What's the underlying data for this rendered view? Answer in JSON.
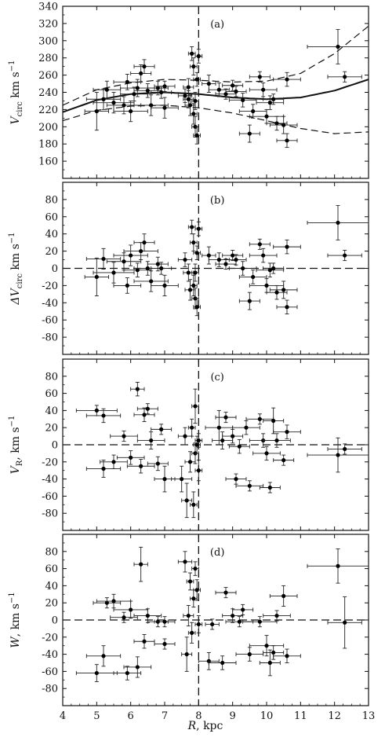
{
  "figure": {
    "xlabel_var": "R",
    "xlabel_unit": ", kpc"
  },
  "chart_data": [
    {
      "id": "a",
      "panel_label": "(a)",
      "type": "scatter",
      "ylabel_var": "V",
      "ylabel_sub": "circ",
      "ylabel_unit": " km s",
      "ylabel_sup": "−1",
      "xlim": [
        4,
        13
      ],
      "ylim": [
        140,
        340
      ],
      "xticks": [
        4,
        5,
        6,
        7,
        8,
        9,
        10,
        11,
        12,
        13
      ],
      "yticks": [
        160,
        180,
        200,
        220,
        240,
        260,
        280,
        300,
        320,
        340
      ],
      "vline_x": 8,
      "curves": [
        {
          "style": "solid",
          "x": [
            4,
            5,
            6,
            7,
            8,
            9,
            10,
            11,
            12,
            13
          ],
          "y": [
            217,
            231,
            238,
            240,
            238,
            234,
            232,
            234,
            242,
            255
          ]
        },
        {
          "style": "dashed",
          "x": [
            4,
            5,
            6,
            7,
            8,
            9,
            10,
            11,
            12,
            13
          ],
          "y": [
            225,
            243,
            251,
            255,
            254,
            252,
            253,
            262,
            285,
            317
          ]
        },
        {
          "style": "dashed",
          "x": [
            4,
            5,
            6,
            7,
            8,
            9,
            10,
            11,
            12,
            13
          ],
          "y": [
            207,
            219,
            224,
            225,
            222,
            216,
            207,
            198,
            192,
            194
          ]
        }
      ],
      "points": [
        [
          5.0,
          218,
          0.35,
          22
        ],
        [
          5.2,
          232,
          0.5,
          12
        ],
        [
          5.3,
          243,
          0.4,
          10
        ],
        [
          5.5,
          228,
          0.6,
          12
        ],
        [
          5.8,
          225,
          0.5,
          10
        ],
        [
          5.9,
          252,
          0.4,
          9
        ],
        [
          6.0,
          218,
          0.5,
          12
        ],
        [
          6.1,
          238,
          0.4,
          8
        ],
        [
          6.2,
          245,
          0.5,
          10
        ],
        [
          6.3,
          262,
          0.3,
          10
        ],
        [
          6.4,
          270,
          0.3,
          8
        ],
        [
          6.5,
          242,
          0.4,
          8
        ],
        [
          6.6,
          225,
          0.5,
          12
        ],
        [
          6.8,
          245,
          0.3,
          8
        ],
        [
          6.9,
          240,
          0.3,
          7
        ],
        [
          7.0,
          222,
          0.4,
          12
        ],
        [
          7.0,
          247,
          0.3,
          6
        ],
        [
          7.6,
          236,
          0.2,
          8
        ],
        [
          7.7,
          246,
          0.15,
          10
        ],
        [
          7.75,
          225,
          0.15,
          12
        ],
        [
          7.8,
          285,
          0.1,
          8
        ],
        [
          7.85,
          270,
          0.1,
          10
        ],
        [
          7.85,
          215,
          0.1,
          12
        ],
        [
          7.9,
          200,
          0.1,
          12
        ],
        [
          7.9,
          230,
          0.1,
          10
        ],
        [
          7.95,
          255,
          0.1,
          8
        ],
        [
          8.0,
          282,
          0.1,
          8
        ],
        [
          7.95,
          190,
          0.1,
          10
        ],
        [
          7.7,
          232,
          0.15,
          10
        ],
        [
          8.3,
          250,
          0.2,
          10
        ],
        [
          8.6,
          243,
          0.3,
          8
        ],
        [
          8.8,
          238,
          0.3,
          6
        ],
        [
          9.0,
          248,
          0.3,
          6
        ],
        [
          9.1,
          241,
          0.3,
          6
        ],
        [
          9.3,
          231,
          0.4,
          8
        ],
        [
          9.5,
          192,
          0.3,
          10
        ],
        [
          9.6,
          218,
          0.4,
          8
        ],
        [
          9.8,
          258,
          0.3,
          6
        ],
        [
          9.9,
          243,
          0.4,
          8
        ],
        [
          10.0,
          212,
          0.5,
          8
        ],
        [
          10.1,
          228,
          0.4,
          8
        ],
        [
          10.2,
          232,
          0.3,
          6
        ],
        [
          10.3,
          204,
          0.3,
          8
        ],
        [
          10.5,
          202,
          0.4,
          10
        ],
        [
          10.6,
          184,
          0.3,
          8
        ],
        [
          10.6,
          255,
          0.4,
          8
        ],
        [
          12.1,
          293,
          0.9,
          20
        ],
        [
          12.3,
          258,
          0.5,
          6
        ]
      ]
    },
    {
      "id": "b",
      "panel_label": "(b)",
      "type": "scatter",
      "ylabel_var": "ΔV",
      "ylabel_sub": "circ",
      "ylabel_unit": " km s",
      "ylabel_sup": "−1",
      "xlim": [
        4,
        13
      ],
      "ylim": [
        -100,
        100
      ],
      "xticks": [
        4,
        5,
        6,
        7,
        8,
        9,
        10,
        11,
        12,
        13
      ],
      "yticks": [
        -80,
        -60,
        -40,
        -20,
        0,
        20,
        40,
        60,
        80
      ],
      "vline_x": 8,
      "hline_y": 0,
      "points": [
        [
          5.0,
          -10,
          0.35,
          22
        ],
        [
          5.2,
          11,
          0.5,
          12
        ],
        [
          5.5,
          -5,
          0.6,
          12
        ],
        [
          5.8,
          8,
          0.5,
          10
        ],
        [
          5.9,
          -20,
          0.4,
          9
        ],
        [
          6.0,
          15,
          0.5,
          12
        ],
        [
          6.2,
          -2,
          0.4,
          8
        ],
        [
          6.3,
          20,
          0.5,
          10
        ],
        [
          6.4,
          30,
          0.3,
          10
        ],
        [
          6.5,
          0,
          0.4,
          8
        ],
        [
          6.6,
          -15,
          0.5,
          12
        ],
        [
          6.8,
          5,
          0.3,
          8
        ],
        [
          6.9,
          0,
          0.3,
          7
        ],
        [
          7.0,
          -20,
          0.4,
          12
        ],
        [
          7.6,
          10,
          0.2,
          8
        ],
        [
          7.7,
          -5,
          0.15,
          10
        ],
        [
          7.75,
          -25,
          0.15,
          12
        ],
        [
          7.8,
          48,
          0.1,
          8
        ],
        [
          7.85,
          30,
          0.1,
          10
        ],
        [
          7.85,
          -20,
          0.1,
          12
        ],
        [
          7.9,
          -35,
          0.1,
          12
        ],
        [
          7.9,
          -5,
          0.1,
          10
        ],
        [
          7.95,
          18,
          0.1,
          8
        ],
        [
          8.0,
          46,
          0.1,
          8
        ],
        [
          7.95,
          -45,
          0.1,
          10
        ],
        [
          8.3,
          15,
          0.2,
          10
        ],
        [
          8.6,
          10,
          0.3,
          8
        ],
        [
          8.8,
          5,
          0.3,
          6
        ],
        [
          9.0,
          15,
          0.3,
          6
        ],
        [
          9.1,
          10,
          0.3,
          6
        ],
        [
          9.3,
          0,
          0.4,
          8
        ],
        [
          9.5,
          -38,
          0.3,
          10
        ],
        [
          9.6,
          -10,
          0.4,
          8
        ],
        [
          9.8,
          28,
          0.3,
          6
        ],
        [
          9.9,
          15,
          0.4,
          8
        ],
        [
          10.0,
          -20,
          0.5,
          8
        ],
        [
          10.1,
          -2,
          0.4,
          8
        ],
        [
          10.2,
          0,
          0.3,
          6
        ],
        [
          10.3,
          -28,
          0.3,
          8
        ],
        [
          10.5,
          -25,
          0.4,
          10
        ],
        [
          10.6,
          -45,
          0.3,
          8
        ],
        [
          10.6,
          25,
          0.4,
          8
        ],
        [
          12.1,
          53,
          0.9,
          20
        ],
        [
          12.3,
          15,
          0.5,
          6
        ]
      ]
    },
    {
      "id": "c",
      "panel_label": "(c)",
      "type": "scatter",
      "ylabel_var": "V",
      "ylabel_sub": "R",
      "ylabel_unit": ", km s",
      "ylabel_sup": "−1",
      "xlim": [
        4,
        13
      ],
      "ylim": [
        -100,
        100
      ],
      "xticks": [
        4,
        5,
        6,
        7,
        8,
        9,
        10,
        11,
        12,
        13
      ],
      "yticks": [
        -80,
        -60,
        -40,
        -20,
        0,
        20,
        40,
        60,
        80
      ],
      "vline_x": 8,
      "hline_y": 0,
      "points": [
        [
          5.0,
          40,
          0.6,
          6
        ],
        [
          5.2,
          34,
          0.5,
          8
        ],
        [
          5.2,
          -28,
          0.5,
          10
        ],
        [
          5.5,
          -20,
          0.4,
          8
        ],
        [
          5.8,
          10,
          0.4,
          6
        ],
        [
          6.0,
          -15,
          0.4,
          8
        ],
        [
          6.2,
          65,
          0.2,
          8
        ],
        [
          6.3,
          -25,
          0.4,
          8
        ],
        [
          6.4,
          35,
          0.3,
          8
        ],
        [
          6.5,
          42,
          0.3,
          6
        ],
        [
          6.6,
          5,
          0.4,
          10
        ],
        [
          6.8,
          -22,
          0.3,
          8
        ],
        [
          6.9,
          18,
          0.3,
          6
        ],
        [
          7.0,
          -40,
          0.3,
          15
        ],
        [
          7.5,
          -40,
          0.3,
          15
        ],
        [
          7.6,
          10,
          0.2,
          10
        ],
        [
          7.65,
          -65,
          0.15,
          20
        ],
        [
          7.75,
          -20,
          0.15,
          12
        ],
        [
          7.8,
          20,
          0.1,
          10
        ],
        [
          7.85,
          -70,
          0.1,
          15
        ],
        [
          7.9,
          45,
          0.1,
          20
        ],
        [
          7.9,
          -10,
          0.1,
          12
        ],
        [
          7.95,
          0,
          0.1,
          10
        ],
        [
          8.0,
          -30,
          0.1,
          12
        ],
        [
          8.0,
          5,
          0.1,
          8
        ],
        [
          8.6,
          20,
          0.4,
          20
        ],
        [
          8.7,
          5,
          0.3,
          10
        ],
        [
          8.8,
          32,
          0.3,
          6
        ],
        [
          9.0,
          10,
          0.3,
          8
        ],
        [
          9.1,
          -40,
          0.3,
          6
        ],
        [
          9.2,
          -2,
          0.3,
          8
        ],
        [
          9.4,
          20,
          0.4,
          8
        ],
        [
          9.5,
          -48,
          0.4,
          6
        ],
        [
          9.8,
          30,
          0.4,
          6
        ],
        [
          9.9,
          5,
          0.4,
          8
        ],
        [
          10.0,
          -10,
          0.4,
          8
        ],
        [
          10.1,
          -50,
          0.3,
          6
        ],
        [
          10.2,
          28,
          0.3,
          15
        ],
        [
          10.3,
          5,
          0.4,
          8
        ],
        [
          10.5,
          -18,
          0.3,
          6
        ],
        [
          10.6,
          15,
          0.4,
          8
        ],
        [
          12.1,
          -12,
          0.9,
          20
        ],
        [
          12.3,
          -5,
          0.5,
          6
        ]
      ]
    },
    {
      "id": "d",
      "panel_label": "(d)",
      "type": "scatter",
      "ylabel_var": "W",
      "ylabel_sub": "",
      "ylabel_unit": ", km s",
      "ylabel_sup": "−1",
      "xlim": [
        4,
        13
      ],
      "ylim": [
        -100,
        100
      ],
      "xticks": [
        4,
        5,
        6,
        7,
        8,
        9,
        10,
        11,
        12,
        13
      ],
      "yticks": [
        -80,
        -60,
        -40,
        -20,
        0,
        20,
        40,
        60,
        80
      ],
      "vline_x": 8,
      "hline_y": 0,
      "points": [
        [
          5.0,
          -62,
          0.6,
          10
        ],
        [
          5.2,
          -42,
          0.5,
          12
        ],
        [
          5.3,
          20,
          0.4,
          6
        ],
        [
          5.5,
          22,
          0.5,
          8
        ],
        [
          5.8,
          3,
          0.4,
          6
        ],
        [
          5.9,
          -62,
          0.4,
          8
        ],
        [
          6.0,
          12,
          0.5,
          10
        ],
        [
          6.2,
          -55,
          0.4,
          12
        ],
        [
          6.3,
          65,
          0.2,
          20
        ],
        [
          6.4,
          -25,
          0.3,
          8
        ],
        [
          6.5,
          5,
          0.4,
          8
        ],
        [
          6.8,
          -2,
          0.3,
          6
        ],
        [
          7.0,
          -28,
          0.3,
          6
        ],
        [
          7.0,
          -2,
          0.3,
          6
        ],
        [
          7.6,
          68,
          0.2,
          12
        ],
        [
          7.65,
          -40,
          0.15,
          20
        ],
        [
          7.7,
          5,
          0.15,
          12
        ],
        [
          7.75,
          45,
          0.1,
          10
        ],
        [
          7.8,
          -15,
          0.1,
          12
        ],
        [
          7.85,
          25,
          0.1,
          10
        ],
        [
          7.9,
          60,
          0.1,
          8
        ],
        [
          7.95,
          35,
          0.1,
          12
        ],
        [
          8.0,
          -5,
          0.1,
          10
        ],
        [
          8.3,
          -48,
          0.3,
          10
        ],
        [
          8.4,
          -5,
          0.2,
          6
        ],
        [
          8.7,
          -50,
          0.4,
          8
        ],
        [
          8.8,
          32,
          0.3,
          6
        ],
        [
          9.0,
          5,
          0.3,
          8
        ],
        [
          9.2,
          -2,
          0.4,
          6
        ],
        [
          9.3,
          12,
          0.3,
          6
        ],
        [
          9.5,
          -40,
          0.4,
          8
        ],
        [
          9.8,
          -2,
          0.5,
          6
        ],
        [
          10.0,
          -30,
          0.5,
          12
        ],
        [
          10.1,
          -50,
          0.3,
          15
        ],
        [
          10.2,
          -38,
          0.3,
          8
        ],
        [
          10.3,
          5,
          0.4,
          6
        ],
        [
          10.5,
          28,
          0.4,
          12
        ],
        [
          10.6,
          -42,
          0.4,
          8
        ],
        [
          12.1,
          63,
          0.9,
          20
        ],
        [
          12.3,
          -3,
          0.5,
          30
        ]
      ]
    }
  ]
}
